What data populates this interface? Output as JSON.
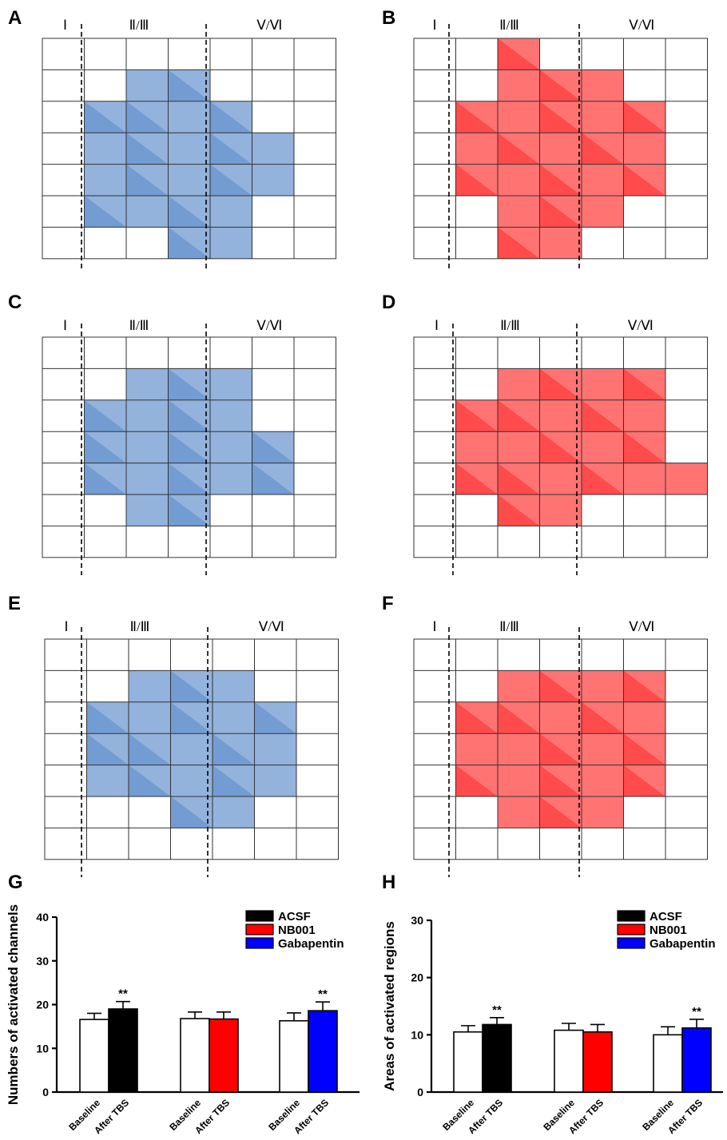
{
  "maps": {
    "layer_labels": [
      "Ⅰ",
      "Ⅱ/Ⅲ",
      "Ⅴ/Ⅵ"
    ],
    "panels": [
      {
        "letter": "A",
        "color": "#3a73bf",
        "region_cells": [
          [
            1,
            2
          ],
          [
            2,
            1
          ],
          [
            3,
            1
          ],
          [
            1,
            3
          ],
          [
            2,
            2
          ],
          [
            3,
            2
          ],
          [
            4,
            2
          ],
          [
            1,
            4
          ],
          [
            2,
            3
          ],
          [
            3,
            3
          ],
          [
            4,
            3
          ],
          [
            5,
            3
          ],
          [
            2,
            4
          ],
          [
            3,
            4
          ],
          [
            4,
            4
          ],
          [
            5,
            4
          ],
          [
            1,
            5
          ],
          [
            2,
            5
          ],
          [
            3,
            5
          ],
          [
            4,
            5
          ],
          [
            3,
            6
          ],
          [
            4,
            6
          ]
        ]
      },
      {
        "letter": "B",
        "color": "#ff0000",
        "region_cells": [
          [
            2,
            0
          ],
          [
            2,
            1
          ],
          [
            3,
            1
          ],
          [
            4,
            1
          ],
          [
            1,
            2
          ],
          [
            2,
            2
          ],
          [
            3,
            2
          ],
          [
            4,
            2
          ],
          [
            5,
            2
          ],
          [
            1,
            3
          ],
          [
            2,
            3
          ],
          [
            3,
            3
          ],
          [
            4,
            3
          ],
          [
            5,
            3
          ],
          [
            1,
            4
          ],
          [
            2,
            4
          ],
          [
            3,
            4
          ],
          [
            4,
            4
          ],
          [
            5,
            4
          ],
          [
            2,
            5
          ],
          [
            3,
            5
          ],
          [
            4,
            5
          ],
          [
            2,
            6
          ],
          [
            3,
            6
          ]
        ]
      },
      {
        "letter": "C",
        "color": "#3a73bf",
        "region_cells": [
          [
            1,
            2
          ],
          [
            2,
            1
          ],
          [
            3,
            1
          ],
          [
            4,
            1
          ],
          [
            1,
            3
          ],
          [
            2,
            2
          ],
          [
            3,
            2
          ],
          [
            4,
            2
          ],
          [
            1,
            4
          ],
          [
            2,
            3
          ],
          [
            3,
            3
          ],
          [
            4,
            3
          ],
          [
            5,
            3
          ],
          [
            2,
            4
          ],
          [
            3,
            4
          ],
          [
            4,
            4
          ],
          [
            5,
            4
          ],
          [
            2,
            5
          ],
          [
            3,
            5
          ]
        ]
      },
      {
        "letter": "D",
        "color": "#ff0000",
        "region_cells": [
          [
            1,
            2
          ],
          [
            2,
            1
          ],
          [
            3,
            1
          ],
          [
            4,
            1
          ],
          [
            5,
            1
          ],
          [
            1,
            3
          ],
          [
            2,
            2
          ],
          [
            3,
            2
          ],
          [
            4,
            2
          ],
          [
            5,
            2
          ],
          [
            1,
            4
          ],
          [
            2,
            3
          ],
          [
            3,
            3
          ],
          [
            4,
            3
          ],
          [
            5,
            3
          ],
          [
            6,
            4
          ],
          [
            2,
            4
          ],
          [
            3,
            4
          ],
          [
            4,
            4
          ],
          [
            5,
            4
          ],
          [
            2,
            5
          ],
          [
            3,
            5
          ]
        ]
      },
      {
        "letter": "E",
        "color": "#3a73bf",
        "region_cells": [
          [
            1,
            2
          ],
          [
            2,
            1
          ],
          [
            3,
            1
          ],
          [
            4,
            1
          ],
          [
            1,
            3
          ],
          [
            2,
            2
          ],
          [
            3,
            2
          ],
          [
            4,
            2
          ],
          [
            5,
            2
          ],
          [
            1,
            4
          ],
          [
            2,
            3
          ],
          [
            3,
            3
          ],
          [
            4,
            3
          ],
          [
            5,
            3
          ],
          [
            2,
            4
          ],
          [
            3,
            4
          ],
          [
            4,
            4
          ],
          [
            5,
            4
          ],
          [
            3,
            5
          ],
          [
            4,
            5
          ]
        ]
      },
      {
        "letter": "F",
        "color": "#ff0000",
        "region_cells": [
          [
            1,
            2
          ],
          [
            2,
            1
          ],
          [
            3,
            1
          ],
          [
            4,
            1
          ],
          [
            5,
            1
          ],
          [
            1,
            3
          ],
          [
            2,
            2
          ],
          [
            3,
            2
          ],
          [
            4,
            2
          ],
          [
            5,
            2
          ],
          [
            1,
            4
          ],
          [
            2,
            3
          ],
          [
            3,
            3
          ],
          [
            4,
            3
          ],
          [
            5,
            3
          ],
          [
            2,
            4
          ],
          [
            3,
            4
          ],
          [
            4,
            4
          ],
          [
            5,
            4
          ],
          [
            2,
            5
          ],
          [
            3,
            5
          ],
          [
            4,
            5
          ]
        ]
      }
    ]
  },
  "chart_data": [
    {
      "letter": "G",
      "type": "bar",
      "ylabel": "Numbers of activated channels",
      "ylim": [
        0,
        40
      ],
      "yticks": [
        "0",
        "10",
        "20",
        "30",
        "40"
      ],
      "categories": [
        "Baseline",
        "After TBS",
        "Baseline",
        "After TBS",
        "Baseline",
        "After TBS"
      ],
      "values": [
        16.6,
        19.0,
        16.8,
        16.7,
        16.3,
        18.6
      ],
      "errors": [
        1.4,
        1.7,
        1.5,
        1.6,
        1.8,
        2.0
      ],
      "colors": [
        "#ffffff",
        "#000000",
        "#ffffff",
        "#ff0000",
        "#ffffff",
        "#0000ff"
      ],
      "significance": [
        "",
        "**",
        "",
        "",
        "",
        "**"
      ],
      "legend": [
        {
          "label": "ACSF",
          "color": "#000000"
        },
        {
          "label": "NB001",
          "color": "#ff0000"
        },
        {
          "label": "Gabapentin",
          "color": "#0000ff"
        }
      ]
    },
    {
      "letter": "H",
      "type": "bar",
      "ylabel": "Areas of activated  regions",
      "ylim": [
        0,
        30
      ],
      "yticks": [
        "0",
        "10",
        "20",
        "30"
      ],
      "categories": [
        "Baseline",
        "After TBS",
        "Baseline",
        "After TBS",
        "Baseline",
        "After TBS"
      ],
      "values": [
        10.5,
        11.8,
        10.8,
        10.5,
        10.0,
        11.2
      ],
      "errors": [
        1.1,
        1.2,
        1.2,
        1.3,
        1.4,
        1.5
      ],
      "colors": [
        "#ffffff",
        "#000000",
        "#ffffff",
        "#ff0000",
        "#ffffff",
        "#0000ff"
      ],
      "significance": [
        "",
        "**",
        "",
        "",
        "",
        "**"
      ],
      "legend": [
        {
          "label": "ACSF",
          "color": "#000000"
        },
        {
          "label": "NB001",
          "color": "#ff0000"
        },
        {
          "label": "Gabapentin",
          "color": "#0000ff"
        }
      ]
    }
  ]
}
